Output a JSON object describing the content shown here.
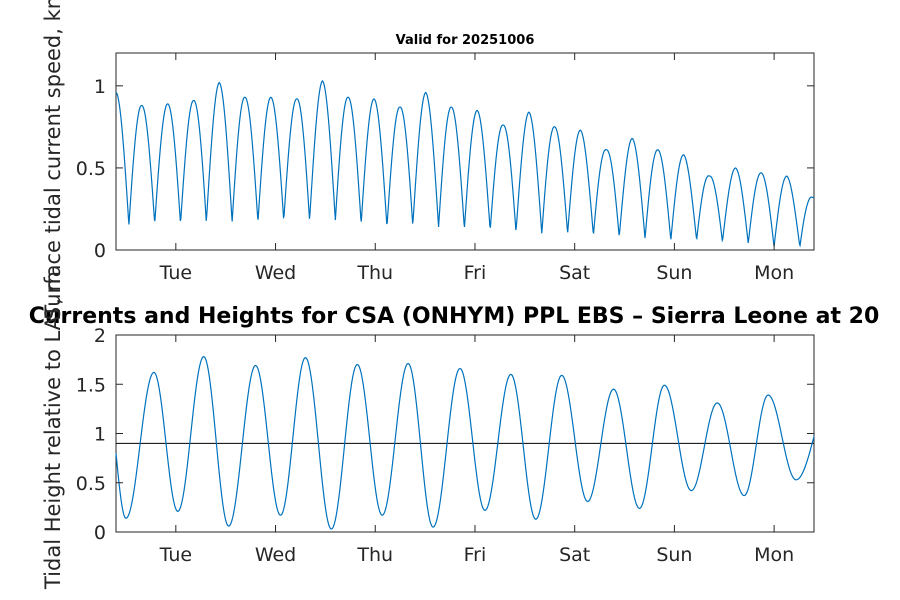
{
  "colors": {
    "series": "#0072BD",
    "axis": "#262626",
    "reference": "#000000"
  },
  "chart_data": [
    {
      "type": "line",
      "title": "Valid for 20251006",
      "xlabel": "",
      "ylabel": "Surface tidal current speed, knots",
      "x_range_days": [
        0,
        7
      ],
      "x_ticks": [
        "Tue",
        "Wed",
        "Thu",
        "Fri",
        "Sat",
        "Sun",
        "Mon"
      ],
      "ylim": [
        0,
        1.2
      ],
      "y_ticks": [
        "0",
        "0.5",
        "1"
      ],
      "series": [
        {
          "name": "current speed",
          "cycle_period_days": 0.2588,
          "first_peak_day": 0.0,
          "peaks": [
            0.96,
            0.88,
            0.89,
            0.91,
            1.02,
            0.93,
            0.93,
            0.92,
            1.03,
            0.93,
            0.92,
            0.87,
            0.96,
            0.87,
            0.85,
            0.76,
            0.84,
            0.75,
            0.73,
            0.61,
            0.68,
            0.61,
            0.58,
            0.45,
            0.5,
            0.47,
            0.45,
            0.32
          ],
          "troughs": [
            0.15,
            0.16,
            0.16,
            0.17,
            0.17,
            0.17,
            0.18,
            0.18,
            0.18,
            0.16,
            0.14,
            0.15,
            0.14,
            0.13,
            0.12,
            0.11,
            0.1,
            0.1,
            0.09,
            0.08,
            0.07,
            0.06,
            0.06,
            0.05,
            0.04,
            0.02,
            0.02
          ]
        }
      ]
    },
    {
      "type": "line",
      "title": "Currents and Heights for CSA (ONHYM) PPL EBS  – Sierra Leone at 20",
      "xlabel": "",
      "ylabel": "Tidal Height relative to LAT, m",
      "x_range_days": [
        0,
        7
      ],
      "x_ticks": [
        "Tue",
        "Wed",
        "Thu",
        "Fri",
        "Sat",
        "Sun",
        "Mon"
      ],
      "ylim": [
        0,
        2
      ],
      "y_ticks": [
        "0",
        "0.5",
        "1",
        "1.5",
        "2"
      ],
      "reference_line": 0.9,
      "series": [
        {
          "name": "tidal height",
          "start_value": 0.8,
          "end_value": 0.97,
          "extrema": [
            {
              "day": 0.1,
              "value": 0.14
            },
            {
              "day": 0.38,
              "value": 1.62
            },
            {
              "day": 0.62,
              "value": 0.21
            },
            {
              "day": 0.88,
              "value": 1.78
            },
            {
              "day": 1.13,
              "value": 0.06
            },
            {
              "day": 1.4,
              "value": 1.69
            },
            {
              "day": 1.65,
              "value": 0.17
            },
            {
              "day": 1.9,
              "value": 1.77
            },
            {
              "day": 2.16,
              "value": 0.03
            },
            {
              "day": 2.42,
              "value": 1.7
            },
            {
              "day": 2.67,
              "value": 0.17
            },
            {
              "day": 2.93,
              "value": 1.71
            },
            {
              "day": 3.18,
              "value": 0.05
            },
            {
              "day": 3.45,
              "value": 1.66
            },
            {
              "day": 3.7,
              "value": 0.22
            },
            {
              "day": 3.96,
              "value": 1.6
            },
            {
              "day": 4.21,
              "value": 0.13
            },
            {
              "day": 4.47,
              "value": 1.59
            },
            {
              "day": 4.73,
              "value": 0.31
            },
            {
              "day": 4.99,
              "value": 1.45
            },
            {
              "day": 5.25,
              "value": 0.24
            },
            {
              "day": 5.5,
              "value": 1.49
            },
            {
              "day": 5.77,
              "value": 0.42
            },
            {
              "day": 6.03,
              "value": 1.31
            },
            {
              "day": 6.3,
              "value": 0.37
            },
            {
              "day": 6.54,
              "value": 1.39
            },
            {
              "day": 6.82,
              "value": 0.53
            }
          ]
        }
      ]
    }
  ]
}
